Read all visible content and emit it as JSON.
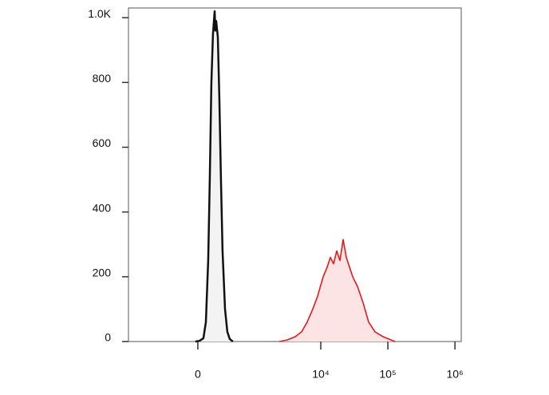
{
  "chart_data": {
    "type": "histogram-overlay",
    "xscale": "biexponential",
    "xlim": [
      -1575,
      1240000
    ],
    "xticks": [
      {
        "value": 0,
        "label": "0"
      },
      {
        "value": 10000,
        "label": "10⁴"
      },
      {
        "value": 100000,
        "label": "10⁵"
      },
      {
        "value": 1000000,
        "label": "10⁶"
      }
    ],
    "ylim": [
      0,
      1030
    ],
    "yticks": [
      0,
      200,
      400,
      600,
      800,
      {
        "value": 1000,
        "label": "1.0K"
      }
    ],
    "series": [
      {
        "color": "#111111",
        "fill": "#f3f3f3",
        "x": [
          -24,
          16,
          57,
          82,
          107,
          124,
          142,
          160,
          179,
          188,
          198,
          218,
          238,
          259,
          281,
          316,
          352,
          390,
          445
        ],
        "values": [
          0,
          2,
          10,
          60,
          250,
          500,
          800,
          950,
          1020,
          960,
          990,
          940,
          750,
          500,
          280,
          100,
          30,
          8,
          0
        ]
      },
      {
        "color": "#e31a1c",
        "fill": "#fde4e4",
        "x": [
          2396,
          3155,
          4154,
          5174,
          6262,
          7585,
          8967,
          10848,
          12436,
          13877,
          15494,
          17287,
          19286,
          21521,
          24020,
          26783,
          29900,
          35221,
          42689,
          51744,
          64386,
          84672,
          111279,
          127743
        ],
        "values": [
          0,
          5,
          15,
          30,
          60,
          100,
          140,
          200,
          230,
          260,
          240,
          280,
          250,
          315,
          260,
          230,
          200,
          170,
          120,
          60,
          30,
          15,
          5,
          0
        ]
      }
    ]
  }
}
